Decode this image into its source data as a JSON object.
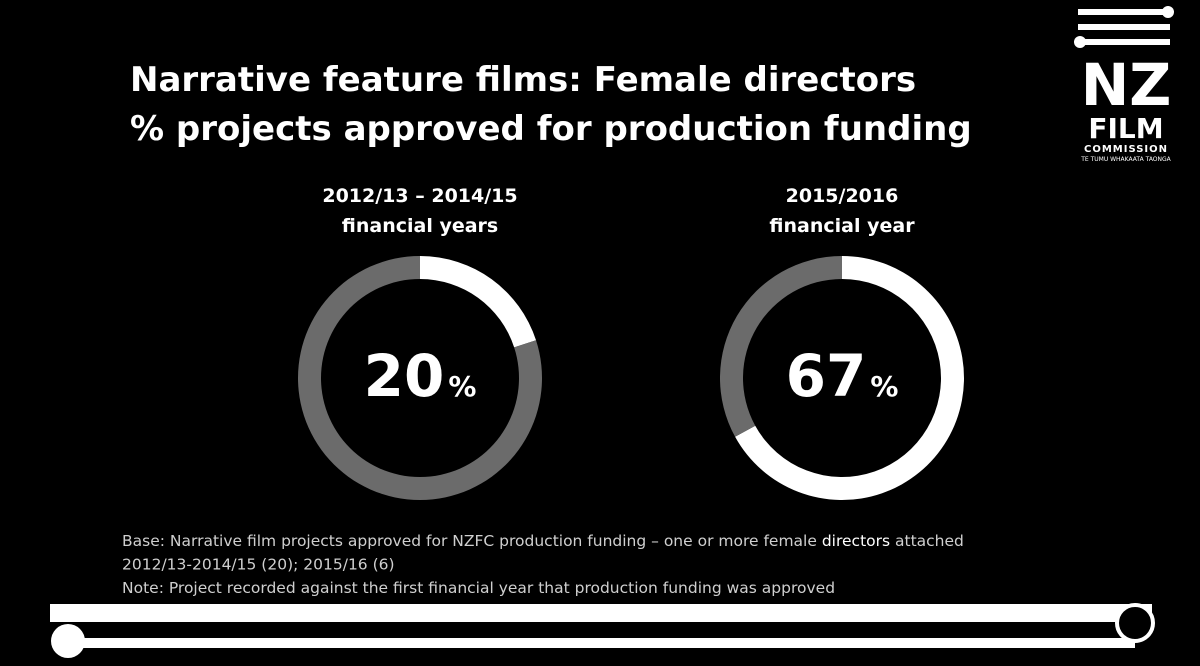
{
  "title": [
    "Narrative feature films: Female directors",
    "% projects approved for production funding"
  ],
  "chart_data": [
    {
      "type": "donut",
      "title": [
        "2012/13 – 2014/15",
        "financial years"
      ],
      "values": [
        20,
        80
      ],
      "unit": "%",
      "colors": [
        "#ffffff",
        "#6b6b6b"
      ]
    },
    {
      "type": "donut",
      "title": [
        "2015/2016",
        "financial year"
      ],
      "values": [
        67,
        33
      ],
      "unit": "%",
      "colors": [
        "#ffffff",
        "#6b6b6b"
      ]
    }
  ],
  "notes": [
    [
      "Base: Narrative film projects approved for NZFC production funding – one or more female ",
      "directors",
      " attached"
    ],
    [
      "2012/13-2014/15 (20); 2015/16 (6)"
    ],
    [
      "Note: Project recorded against the first financial year that production funding was approved"
    ]
  ],
  "logo": {
    "mark": "NZ",
    "name": "FILM",
    "sub": "COMMISSION",
    "tagline": "TE TUMU WHAKAATA TAONGA"
  }
}
